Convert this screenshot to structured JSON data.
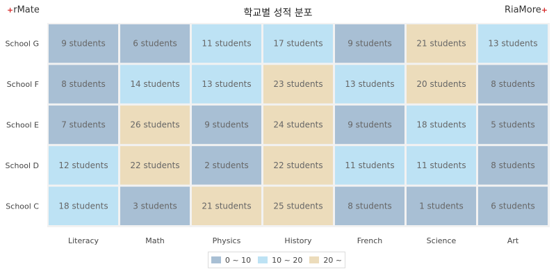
{
  "brand_left": "rMate",
  "brand_right": "RiaMore",
  "chart_data": {
    "type": "heatmap",
    "title": "학교별 성적 분포",
    "x_categories": [
      "Literacy",
      "Math",
      "Physics",
      "History",
      "French",
      "Science",
      "Art"
    ],
    "y_categories": [
      "School G",
      "School F",
      "School E",
      "School D",
      "School C"
    ],
    "value_suffix": " students",
    "values": [
      [
        9,
        6,
        11,
        17,
        9,
        21,
        13
      ],
      [
        8,
        14,
        13,
        23,
        13,
        20,
        8
      ],
      [
        7,
        26,
        9,
        24,
        9,
        18,
        5
      ],
      [
        12,
        22,
        2,
        22,
        11,
        11,
        8
      ],
      [
        18,
        3,
        21,
        25,
        8,
        1,
        6
      ]
    ],
    "bins": [
      {
        "label": "0 ~ 10",
        "min": 0,
        "max": 10,
        "color": "#a8bfd4"
      },
      {
        "label": "10 ~ 20",
        "min": 10,
        "max": 20,
        "color": "#bde2f4"
      },
      {
        "label": "20 ~",
        "min": 20,
        "max": null,
        "color": "#ecdcbb"
      }
    ],
    "legend_position": "bottom"
  }
}
